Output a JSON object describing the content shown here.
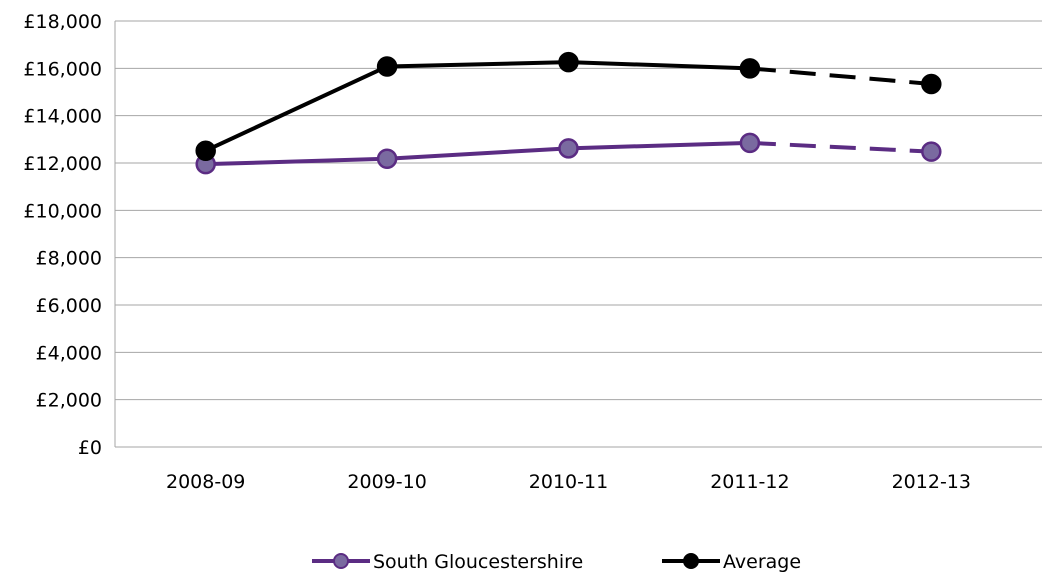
{
  "chart_data": {
    "type": "line",
    "categories": [
      "2008-09",
      "2009-10",
      "2010-11",
      "2011-12",
      "2012-13"
    ],
    "series": [
      {
        "name": "South Gloucestershire",
        "values": [
          11950,
          12180,
          12620,
          12850,
          12480
        ],
        "line_color": "#5b2c83",
        "marker_fill": "#7a6aa0",
        "marker_stroke": "#5b2c83",
        "dashed_from_index": 3
      },
      {
        "name": "Average",
        "values": [
          12520,
          16080,
          16260,
          16000,
          15340
        ],
        "line_color": "#000000",
        "marker_fill": "#000000",
        "marker_stroke": "#000000",
        "dashed_from_index": 3
      }
    ],
    "yticks": [
      "£0",
      "£2,000",
      "£4,000",
      "£6,000",
      "£8,000",
      "£10,000",
      "£12,000",
      "£14,000",
      "£16,000",
      "£18,000"
    ],
    "ylim": [
      0,
      18000
    ],
    "ystep": 2000,
    "grid": true,
    "legend_position": "bottom",
    "title": "",
    "xlabel": "",
    "ylabel": ""
  }
}
